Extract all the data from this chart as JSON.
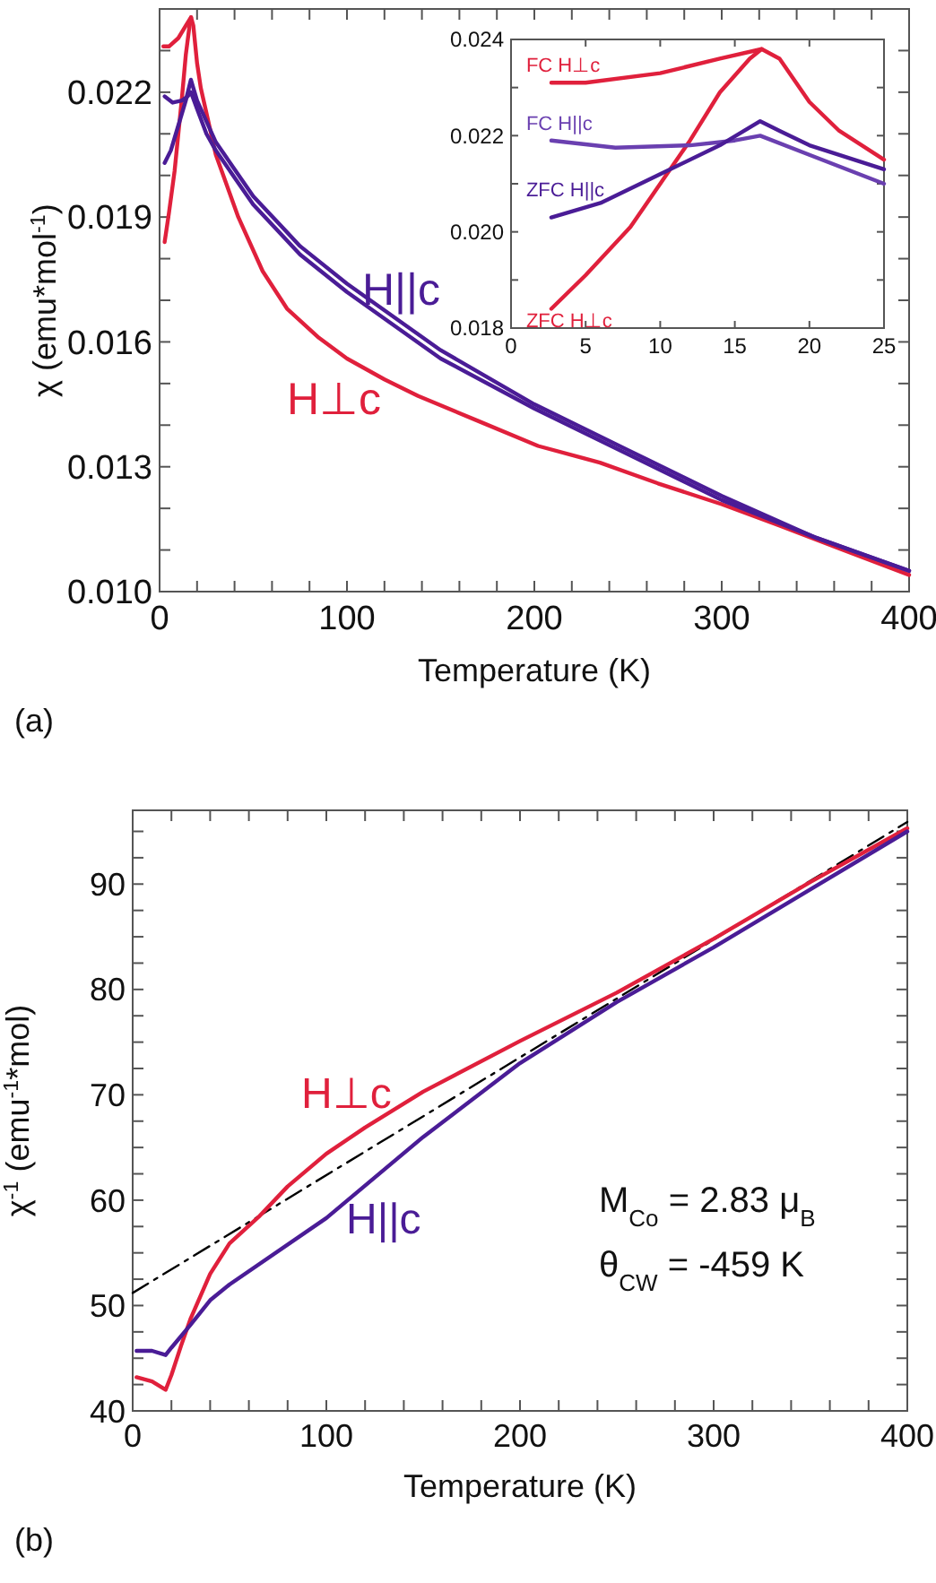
{
  "chart_data": [
    {
      "type": "line",
      "title": "(a)",
      "xlabel": "Temperature (K)",
      "ylabel": "χ (emu*mol$^{-1}$)",
      "xlim": [
        0,
        400
      ],
      "ylim": [
        0.01,
        0.024
      ],
      "xticks": [
        0,
        {
          "value": 20,
          "label": null
        },
        {
          "value": 40,
          "label": null
        },
        {
          "value": 60,
          "label": null
        },
        {
          "value": 80,
          "label": null
        },
        100,
        {
          "value": 120,
          "label": null
        },
        {
          "value": 140,
          "label": null
        },
        {
          "value": 160,
          "label": null
        },
        {
          "value": 180,
          "label": null
        },
        200,
        {
          "value": 220,
          "label": null
        },
        {
          "value": 240,
          "label": null
        },
        {
          "value": 260,
          "label": null
        },
        {
          "value": 280,
          "label": null
        },
        300,
        {
          "value": 320,
          "label": null
        },
        {
          "value": 340,
          "label": null
        },
        {
          "value": 360,
          "label": null
        },
        {
          "value": 380,
          "label": null
        },
        400
      ],
      "yticks": [
        {
          "value": 0.01,
          "label": "0.010"
        },
        {
          "value": 0.011,
          "label": null
        },
        {
          "value": 0.012,
          "label": null
        },
        0.013,
        {
          "value": 0.014,
          "label": null
        },
        {
          "value": 0.015,
          "label": null
        },
        0.016,
        {
          "value": 0.017,
          "label": null
        },
        {
          "value": 0.018,
          "label": null
        },
        0.019,
        {
          "value": 0.02,
          "label": null
        },
        {
          "value": 0.021,
          "label": null
        },
        0.022,
        {
          "value": 0.023,
          "label": null
        }
      ],
      "annotations": [
        "H||c",
        "H⊥c"
      ],
      "series": [
        {
          "color": "#e0203c",
          "x": [
            2,
            5,
            10,
            14,
            16.8,
            18,
            20,
            22,
            25,
            30,
            42,
            55,
            68,
            85,
            100,
            120,
            138,
            170,
            202,
            235,
            266,
            300,
            330,
            365,
            400
          ],
          "values": [
            0.0231,
            0.0231,
            0.0233,
            0.0236,
            0.0238,
            0.0236,
            0.0227,
            0.0221,
            0.0215,
            0.0205,
            0.019,
            0.0177,
            0.0168,
            0.0161,
            0.0156,
            0.0151,
            0.0147,
            0.0141,
            0.0135,
            0.0131,
            0.0126,
            0.0121,
            0.0116,
            0.011,
            0.0104
          ]
        },
        {
          "color": "#e0203c",
          "x": [
            2.7,
            5,
            8,
            10,
            12,
            14,
            16,
            16.8
          ],
          "values": [
            0.0184,
            0.0191,
            0.0201,
            0.021,
            0.0219,
            0.0229,
            0.0236,
            0.0238
          ]
        },
        {
          "color": "#4a1c96",
          "x": [
            2.7,
            7,
            12,
            15,
            16.7,
            20,
            25,
            30,
            50,
            75,
            100,
            150,
            200,
            250,
            300,
            350,
            400
          ],
          "values": [
            0.0219,
            0.02175,
            0.0218,
            0.0219,
            0.022,
            0.0216,
            0.021,
            0.0206,
            0.0193,
            0.0181,
            0.0172,
            0.0156,
            0.0144,
            0.0133,
            0.0122,
            0.0113,
            0.0105
          ]
        },
        {
          "color": "#4a1c96",
          "x": [
            2.7,
            6,
            10,
            14,
            16.7,
            18,
            20,
            25,
            30,
            50,
            75,
            100,
            150,
            200,
            250,
            300,
            350,
            400
          ],
          "values": [
            0.0203,
            0.0206,
            0.0212,
            0.0218,
            0.0223,
            0.0221,
            0.0218,
            0.0213,
            0.0208,
            0.0195,
            0.0183,
            0.0174,
            0.0158,
            0.0145,
            0.0134,
            0.0123,
            0.0113,
            0.0105
          ]
        }
      ]
    },
    {
      "type": "line",
      "xlim": [
        0,
        25
      ],
      "ylim": [
        0.018,
        0.024
      ],
      "xticks": [
        0,
        5,
        10,
        15,
        20,
        25
      ],
      "yticks": [
        0.018,
        {
          "value": 0.019,
          "label": null
        },
        {
          "value": 0.02,
          "label": "0.020"
        },
        {
          "value": 0.021,
          "label": null
        },
        0.022,
        {
          "value": 0.023,
          "label": null
        },
        0.024
      ],
      "series": [
        {
          "name": "FC H⊥c",
          "color": "#e0203c",
          "x": [
            2.7,
            5,
            10,
            14,
            16.8,
            18,
            20,
            22,
            25
          ],
          "values": [
            0.0231,
            0.0231,
            0.0233,
            0.0236,
            0.0238,
            0.0236,
            0.0227,
            0.0221,
            0.0215
          ]
        },
        {
          "name": "ZFC H⊥c",
          "color": "#e0203c",
          "x": [
            2.7,
            5,
            8,
            10,
            12,
            14,
            16,
            16.8
          ],
          "values": [
            0.0184,
            0.0191,
            0.0201,
            0.021,
            0.0219,
            0.0229,
            0.0236,
            0.0238
          ]
        },
        {
          "name": "FC H||c",
          "color": "#6a40b0",
          "x": [
            2.7,
            7,
            12,
            15,
            16.7,
            20,
            25
          ],
          "values": [
            0.0219,
            0.02175,
            0.0218,
            0.0219,
            0.022,
            0.0216,
            0.021
          ]
        },
        {
          "name": "ZFC H||c",
          "color": "#4a1c96",
          "x": [
            2.7,
            6,
            10,
            14,
            16.7,
            18,
            20,
            25
          ],
          "values": [
            0.0203,
            0.0206,
            0.0212,
            0.0218,
            0.0223,
            0.0221,
            0.0218,
            0.0213
          ]
        }
      ]
    },
    {
      "type": "line",
      "title": "(b)",
      "xlabel": "Temperature (K)",
      "ylabel": "χ$^{-1}$ (emu$^{-1}$*mol)",
      "xlim": [
        0,
        400
      ],
      "ylim": [
        40,
        97
      ],
      "xticks": [
        0,
        {
          "value": 20,
          "label": null
        },
        {
          "value": 40,
          "label": null
        },
        {
          "value": 60,
          "label": null
        },
        {
          "value": 80,
          "label": null
        },
        100,
        {
          "value": 120,
          "label": null
        },
        {
          "value": 140,
          "label": null
        },
        {
          "value": 160,
          "label": null
        },
        {
          "value": 180,
          "label": null
        },
        200,
        {
          "value": 220,
          "label": null
        },
        {
          "value": 240,
          "label": null
        },
        {
          "value": 260,
          "label": null
        },
        {
          "value": 280,
          "label": null
        },
        300,
        {
          "value": 320,
          "label": null
        },
        {
          "value": 340,
          "label": null
        },
        {
          "value": 360,
          "label": null
        },
        {
          "value": 380,
          "label": null
        },
        400
      ],
      "yticks": [
        40,
        {
          "value": 42.5,
          "label": null
        },
        {
          "value": 45,
          "label": null
        },
        {
          "value": 47.5,
          "label": null
        },
        50,
        {
          "value": 52.5,
          "label": null
        },
        {
          "value": 55,
          "label": null
        },
        {
          "value": 57.5,
          "label": null
        },
        60,
        {
          "value": 62.5,
          "label": null
        },
        {
          "value": 65,
          "label": null
        },
        {
          "value": 67.5,
          "label": null
        },
        70,
        {
          "value": 72.5,
          "label": null
        },
        {
          "value": 75,
          "label": null
        },
        {
          "value": 77.5,
          "label": null
        },
        80,
        {
          "value": 82.5,
          "label": null
        },
        {
          "value": 85,
          "label": null
        },
        {
          "value": 87.5,
          "label": null
        },
        90,
        {
          "value": 92.5,
          "label": null
        },
        {
          "value": 95,
          "label": null
        }
      ],
      "annotations": [
        "H⊥c",
        "H||c",
        "M$_{Co}$ = 2.83 μ$_{B}$",
        "θ$_{CW}$ = -459 K"
      ],
      "series": [
        {
          "type": "line",
          "color": "#000000",
          "line_style": "dashed",
          "x": [
            0,
            400
          ],
          "values": [
            51.2,
            95.9
          ]
        },
        {
          "color": "#e0203c",
          "x": [
            2,
            10,
            17,
            20,
            25,
            30,
            40,
            50,
            65,
            80,
            100,
            120,
            150,
            200,
            250,
            300,
            350,
            400
          ],
          "values": [
            43.2,
            42.8,
            42,
            43.4,
            46.2,
            48.8,
            53,
            55.9,
            58.4,
            61.3,
            64.4,
            66.9,
            70.3,
            75.1,
            79.7,
            84.8,
            90.2,
            95.3
          ]
        },
        {
          "color": "#4a1c96",
          "x": [
            2,
            10,
            17,
            20,
            30,
            40,
            50,
            100,
            150,
            200,
            250,
            300,
            350,
            400
          ],
          "values": [
            45.7,
            45.7,
            45.3,
            46,
            48.2,
            50.5,
            52,
            58.3,
            66,
            73,
            78.8,
            84,
            89.5,
            95
          ]
        }
      ]
    }
  ]
}
